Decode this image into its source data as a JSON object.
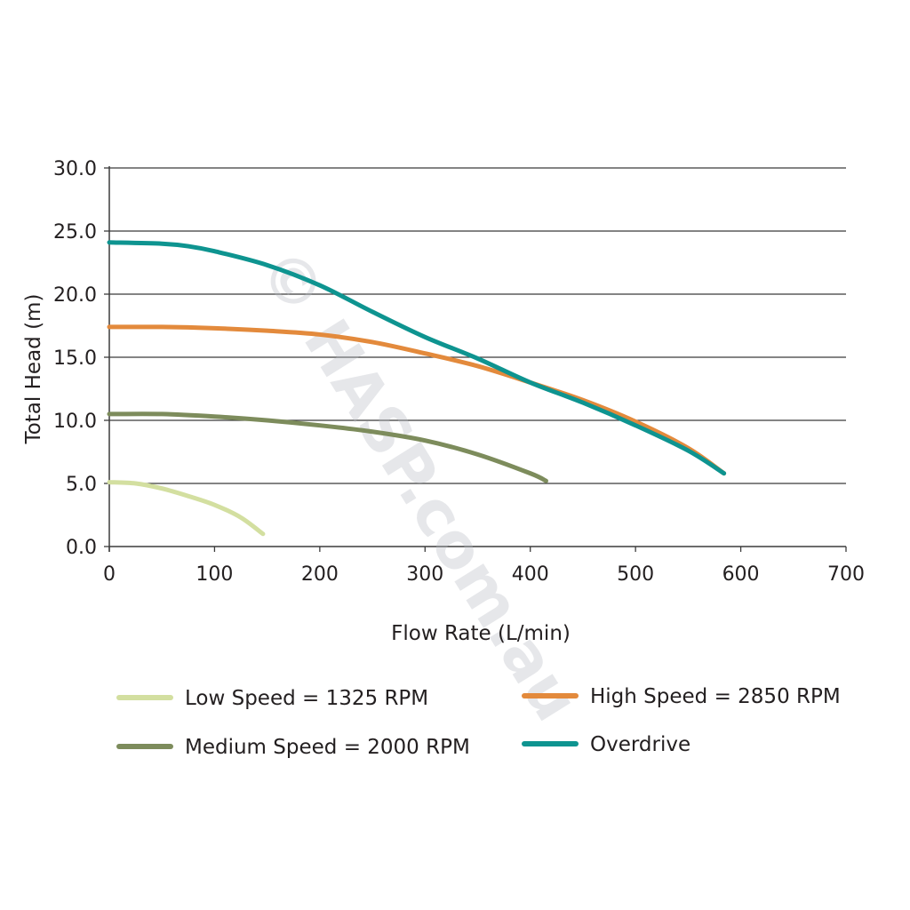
{
  "chart_data": {
    "type": "line",
    "title": "",
    "xlabel": "Flow Rate (L/min)",
    "ylabel": "Total Head (m)",
    "xlim": [
      0,
      700
    ],
    "ylim": [
      0,
      30
    ],
    "xticks": [
      "0",
      "100",
      "200",
      "300",
      "400",
      "500",
      "600",
      "700"
    ],
    "yticks": [
      "0.0",
      "5.0",
      "10.0",
      "15.0",
      "20.0",
      "25.0",
      "30.0"
    ],
    "grid": "horizontal",
    "legend_position": "bottom",
    "watermark": "© HASP.com.au",
    "series": [
      {
        "name": "Low Speed = 1325 RPM",
        "color": "#d3dfa0",
        "x": [
          0,
          25,
          50,
          75,
          100,
          125,
          146
        ],
        "y": [
          5.1,
          5.0,
          4.6,
          4.0,
          3.3,
          2.3,
          1.0
        ]
      },
      {
        "name": "Medium Speed = 2000 RPM",
        "color": "#7d8c5c",
        "x": [
          0,
          50,
          100,
          150,
          200,
          250,
          300,
          350,
          400,
          415
        ],
        "y": [
          10.5,
          10.5,
          10.3,
          10.0,
          9.6,
          9.1,
          8.4,
          7.3,
          5.8,
          5.2
        ]
      },
      {
        "name": "High Speed = 2850 RPM",
        "color": "#e38a3c",
        "x": [
          0,
          50,
          100,
          150,
          200,
          250,
          300,
          350,
          400,
          450,
          500,
          550,
          584
        ],
        "y": [
          17.4,
          17.4,
          17.3,
          17.1,
          16.8,
          16.2,
          15.3,
          14.3,
          13.0,
          11.6,
          9.9,
          7.8,
          5.8
        ]
      },
      {
        "name": "Overdrive",
        "color": "#0e9490",
        "x": [
          0,
          50,
          75,
          100,
          150,
          200,
          250,
          300,
          350,
          400,
          450,
          500,
          550,
          584
        ],
        "y": [
          24.1,
          24.0,
          23.8,
          23.4,
          22.3,
          20.7,
          18.6,
          16.6,
          14.9,
          13.0,
          11.4,
          9.6,
          7.6,
          5.8
        ]
      }
    ]
  }
}
